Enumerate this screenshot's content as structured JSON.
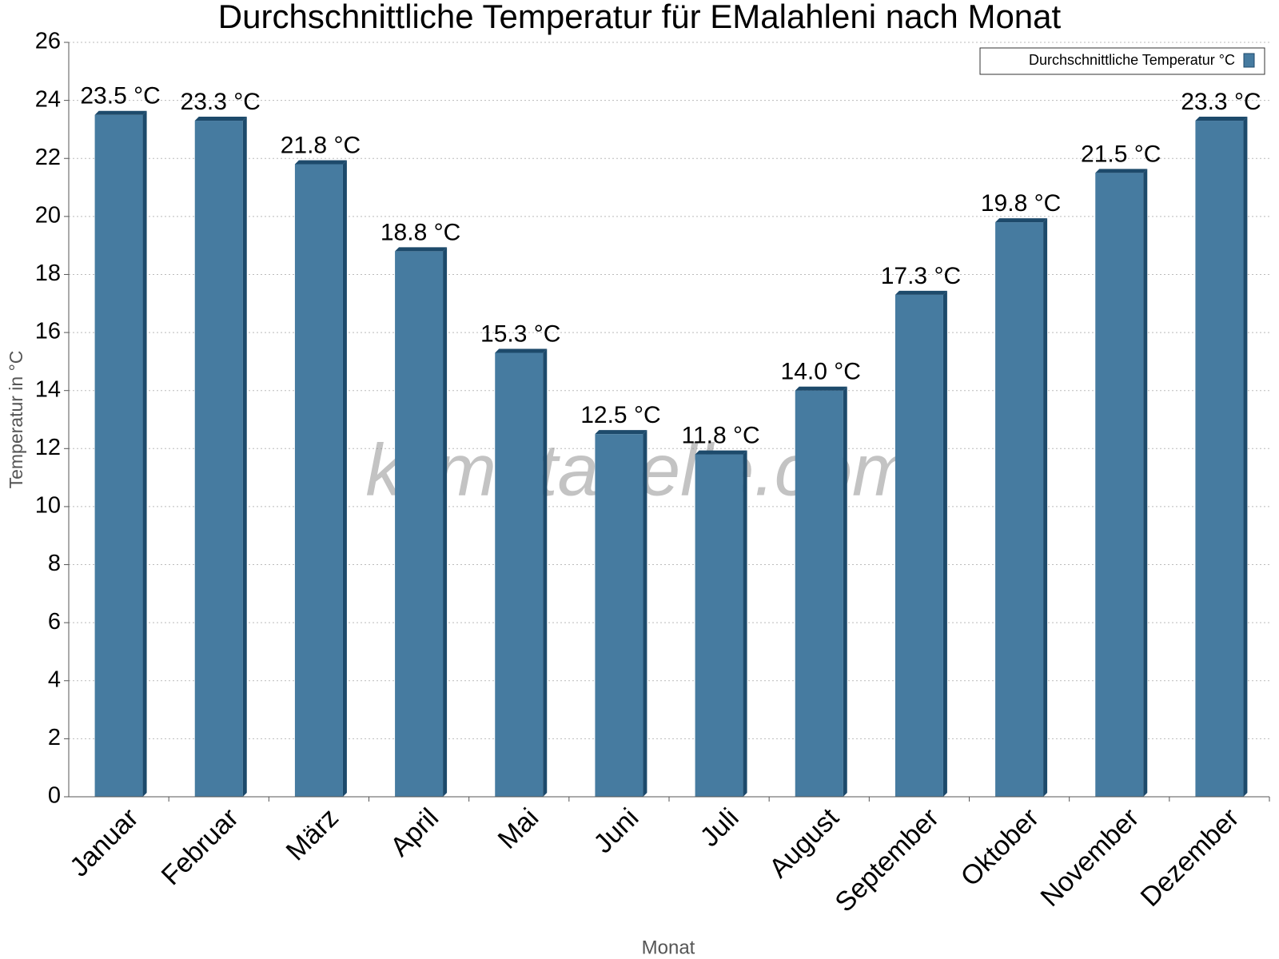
{
  "chart_data": {
    "type": "bar",
    "title": "Durchschnittliche Temperatur für EMalahleni nach Monat",
    "x_label": "Monat",
    "y_label": "Temperatur in °C",
    "watermark": "klimatabelle.com",
    "categories": [
      "Januar",
      "Februar",
      "März",
      "April",
      "Mai",
      "Juni",
      "Juli",
      "August",
      "September",
      "Oktober",
      "November",
      "Dezember"
    ],
    "series": [
      {
        "name": "Durchschnittliche Temperatur °C",
        "color": "#467ba0",
        "values": [
          23.5,
          23.3,
          21.8,
          18.8,
          15.3,
          12.5,
          11.8,
          14.0,
          17.3,
          19.8,
          21.5,
          23.3
        ],
        "value_labels": [
          "23.5 °C",
          "23.3 °C",
          "21.8 °C",
          "18.8 °C",
          "15.3 °C",
          "12.5 °C",
          "11.8 °C",
          "14.0 °C",
          "17.3 °C",
          "19.8 °C",
          "21.5 °C",
          "23.3 °C"
        ]
      }
    ],
    "ylim": [
      0,
      26
    ],
    "yticks": [
      0,
      2,
      4,
      6,
      8,
      10,
      12,
      14,
      16,
      18,
      20,
      22,
      24,
      26
    ],
    "grid": true,
    "legend": "top-right"
  }
}
